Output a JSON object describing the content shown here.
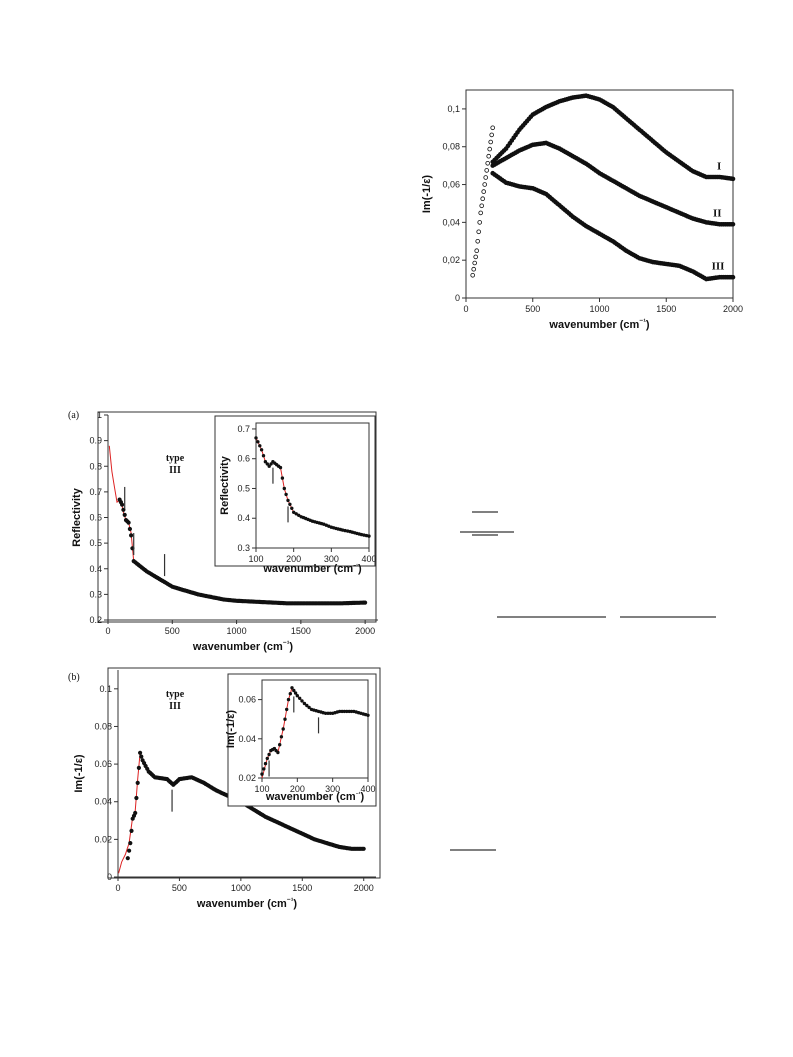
{
  "chart_data": [
    {
      "id": "top",
      "type": "scatter",
      "xlabel": "wavenumber (cm⁻¹)",
      "ylabel": "Im(-1/ε)",
      "xlim": [
        0,
        2000
      ],
      "ylim": [
        0,
        0.11
      ],
      "xticks": [
        0,
        500,
        1000,
        1500,
        2000
      ],
      "xtick_labels": [
        "0",
        "500",
        "1000",
        "1500",
        "2000"
      ],
      "yticks": [
        0,
        0.02,
        0.04,
        0.06,
        0.08,
        0.1
      ],
      "ytick_labels": [
        "0",
        "0,02",
        "0,04",
        "0,06",
        "0,08",
        "0,1"
      ],
      "grid": false,
      "series": [
        {
          "name": "I",
          "label_at": [
            1880,
            0.068
          ],
          "points": [
            [
              200,
              0.072
            ],
            [
              300,
              0.079
            ],
            [
              400,
              0.089
            ],
            [
              500,
              0.097
            ],
            [
              600,
              0.101
            ],
            [
              700,
              0.104
            ],
            [
              800,
              0.106
            ],
            [
              900,
              0.107
            ],
            [
              1000,
              0.105
            ],
            [
              1100,
              0.101
            ],
            [
              1200,
              0.095
            ],
            [
              1300,
              0.089
            ],
            [
              1400,
              0.083
            ],
            [
              1500,
              0.077
            ],
            [
              1600,
              0.072
            ],
            [
              1700,
              0.067
            ],
            [
              1800,
              0.064
            ],
            [
              1900,
              0.064
            ],
            [
              2000,
              0.063
            ]
          ]
        },
        {
          "name": "II",
          "label_at": [
            1850,
            0.043
          ],
          "points": [
            [
              200,
              0.07
            ],
            [
              300,
              0.074
            ],
            [
              400,
              0.078
            ],
            [
              500,
              0.081
            ],
            [
              600,
              0.082
            ],
            [
              700,
              0.079
            ],
            [
              800,
              0.075
            ],
            [
              900,
              0.071
            ],
            [
              1000,
              0.066
            ],
            [
              1100,
              0.062
            ],
            [
              1200,
              0.058
            ],
            [
              1300,
              0.054
            ],
            [
              1400,
              0.051
            ],
            [
              1500,
              0.048
            ],
            [
              1600,
              0.045
            ],
            [
              1700,
              0.042
            ],
            [
              1800,
              0.04
            ],
            [
              1900,
              0.039
            ],
            [
              2000,
              0.039
            ]
          ]
        },
        {
          "name": "III",
          "label_at": [
            1840,
            0.015
          ],
          "points": [
            [
              200,
              0.066
            ],
            [
              300,
              0.061
            ],
            [
              400,
              0.059
            ],
            [
              500,
              0.058
            ],
            [
              600,
              0.055
            ],
            [
              700,
              0.049
            ],
            [
              800,
              0.043
            ],
            [
              900,
              0.038
            ],
            [
              1000,
              0.034
            ],
            [
              1100,
              0.03
            ],
            [
              1200,
              0.025
            ],
            [
              1300,
              0.021
            ],
            [
              1400,
              0.019
            ],
            [
              1500,
              0.018
            ],
            [
              1600,
              0.017
            ],
            [
              1700,
              0.014
            ],
            [
              1800,
              0.01
            ],
            [
              1900,
              0.011
            ],
            [
              2000,
              0.011
            ]
          ]
        },
        {
          "name": "",
          "points": [
            [
              50,
              0.012
            ],
            [
              80,
              0.025
            ],
            [
              110,
              0.045
            ],
            [
              140,
              0.06
            ],
            [
              170,
              0.075
            ],
            [
              200,
              0.09
            ]
          ]
        }
      ]
    },
    {
      "id": "a",
      "type": "line",
      "panel_label": "(a)",
      "annotation": [
        "type",
        "III"
      ],
      "xlabel": "wavenumber (cm⁻¹)",
      "ylabel": "Reflectivity",
      "xlim": [
        0,
        2100
      ],
      "ylim": [
        0.2,
        1.0
      ],
      "xticks": [
        0,
        500,
        1000,
        1500,
        2000
      ],
      "xtick_labels": [
        "0",
        "500",
        "1000",
        "1500",
        "2000"
      ],
      "yticks": [
        0.2,
        0.3,
        0.4,
        0.5,
        0.6,
        0.7,
        0.8,
        0.9,
        1.0
      ],
      "ytick_labels": [
        "0.2",
        "0.3",
        "0.4",
        "0.5",
        "0.6",
        "0.7",
        "0.8",
        "0.9",
        "1"
      ],
      "grid": false,
      "fit": {
        "name": "",
        "points": [
          [
            10,
            0.88
          ],
          [
            30,
            0.78
          ],
          [
            50,
            0.72
          ],
          [
            70,
            0.66
          ],
          [
            100,
            0.67
          ],
          [
            120,
            0.62
          ],
          [
            140,
            0.59
          ],
          [
            160,
            0.58
          ],
          [
            180,
            0.54
          ],
          [
            200,
            0.43
          ],
          [
            250,
            0.41
          ],
          [
            300,
            0.39
          ],
          [
            400,
            0.36
          ],
          [
            500,
            0.33
          ],
          [
            700,
            0.3
          ],
          [
            1000,
            0.275
          ],
          [
            1500,
            0.265
          ],
          [
            2000,
            0.268
          ]
        ]
      },
      "data": {
        "name": "",
        "points": [
          [
            90,
            0.67
          ],
          [
            110,
            0.65
          ],
          [
            140,
            0.59
          ],
          [
            160,
            0.58
          ],
          [
            180,
            0.53
          ],
          [
            200,
            0.43
          ],
          [
            250,
            0.41
          ],
          [
            300,
            0.39
          ],
          [
            400,
            0.36
          ],
          [
            500,
            0.33
          ],
          [
            600,
            0.315
          ],
          [
            700,
            0.3
          ],
          [
            800,
            0.29
          ],
          [
            900,
            0.28
          ],
          [
            1000,
            0.275
          ],
          [
            1200,
            0.27
          ],
          [
            1400,
            0.265
          ],
          [
            1600,
            0.265
          ],
          [
            1800,
            0.265
          ],
          [
            2000,
            0.268
          ]
        ]
      },
      "markers_x": [
        130,
        200,
        440
      ],
      "inset": {
        "xlabel": "wavenumber (cm⁻¹)",
        "ylabel": "Reflectivity",
        "xlim": [
          100,
          400
        ],
        "ylim": [
          0.3,
          0.72
        ],
        "xticks": [
          100,
          200,
          300,
          400
        ],
        "xtick_labels": [
          "100",
          "200",
          "300",
          "400"
        ],
        "yticks": [
          0.3,
          0.4,
          0.5,
          0.6,
          0.7
        ],
        "ytick_labels": [
          "0.3",
          "0.4",
          "0.5",
          "0.6",
          "0.7"
        ],
        "fit": {
          "points": [
            [
              100,
              0.67
            ],
            [
              115,
              0.63
            ],
            [
              125,
              0.59
            ],
            [
              135,
              0.575
            ],
            [
              145,
              0.59
            ],
            [
              155,
              0.58
            ],
            [
              165,
              0.57
            ],
            [
              175,
              0.5
            ],
            [
              185,
              0.46
            ],
            [
              200,
              0.42
            ],
            [
              250,
              0.39
            ],
            [
              300,
              0.37
            ],
            [
              350,
              0.355
            ],
            [
              400,
              0.34
            ]
          ]
        },
        "data": {
          "points": [
            [
              100,
              0.67
            ],
            [
              115,
              0.63
            ],
            [
              125,
              0.59
            ],
            [
              135,
              0.575
            ],
            [
              145,
              0.59
            ],
            [
              155,
              0.58
            ],
            [
              165,
              0.57
            ],
            [
              175,
              0.5
            ],
            [
              185,
              0.46
            ],
            [
              200,
              0.42
            ],
            [
              220,
              0.405
            ],
            [
              250,
              0.39
            ],
            [
              280,
              0.38
            ],
            [
              300,
              0.37
            ],
            [
              330,
              0.36
            ],
            [
              350,
              0.355
            ],
            [
              380,
              0.345
            ],
            [
              400,
              0.34
            ]
          ]
        },
        "markers_x": [
          145,
          185
        ]
      }
    },
    {
      "id": "b",
      "type": "line",
      "panel_label": "(b)",
      "annotation": [
        "type",
        "III"
      ],
      "xlabel": "wavenumber (cm⁻¹)",
      "ylabel": "Im(-1/ε)",
      "xlim": [
        0,
        2100
      ],
      "ylim": [
        0,
        0.11
      ],
      "xticks": [
        0,
        500,
        1000,
        1500,
        2000
      ],
      "xtick_labels": [
        "0",
        "500",
        "1000",
        "1500",
        "2000"
      ],
      "yticks": [
        0,
        0.02,
        0.04,
        0.06,
        0.08,
        0.1
      ],
      "ytick_labels": [
        "0",
        "0.02",
        "0.04",
        "0.06",
        "0.08",
        "0.1"
      ],
      "grid": false,
      "fit": {
        "points": [
          [
            5,
            0.002
          ],
          [
            30,
            0.008
          ],
          [
            60,
            0.012
          ],
          [
            90,
            0.018
          ],
          [
            120,
            0.032
          ],
          [
            140,
            0.035
          ],
          [
            160,
            0.052
          ],
          [
            180,
            0.066
          ],
          [
            200,
            0.062
          ],
          [
            250,
            0.056
          ],
          [
            300,
            0.053
          ],
          [
            400,
            0.052
          ],
          [
            450,
            0.049
          ],
          [
            500,
            0.052
          ],
          [
            600,
            0.053
          ],
          [
            700,
            0.05
          ],
          [
            800,
            0.046
          ],
          [
            1000,
            0.04
          ],
          [
            1200,
            0.032
          ],
          [
            1400,
            0.026
          ],
          [
            1600,
            0.02
          ],
          [
            1800,
            0.016
          ],
          [
            2000,
            0.015
          ]
        ]
      },
      "data": {
        "points": [
          [
            80,
            0.01
          ],
          [
            100,
            0.018
          ],
          [
            120,
            0.031
          ],
          [
            140,
            0.034
          ],
          [
            160,
            0.05
          ],
          [
            180,
            0.066
          ],
          [
            200,
            0.062
          ],
          [
            250,
            0.056
          ],
          [
            300,
            0.053
          ],
          [
            400,
            0.052
          ],
          [
            450,
            0.049
          ],
          [
            500,
            0.052
          ],
          [
            600,
            0.053
          ],
          [
            700,
            0.05
          ],
          [
            800,
            0.046
          ],
          [
            900,
            0.043
          ],
          [
            1000,
            0.04
          ],
          [
            1100,
            0.036
          ],
          [
            1200,
            0.032
          ],
          [
            1300,
            0.029
          ],
          [
            1400,
            0.026
          ],
          [
            1500,
            0.023
          ],
          [
            1600,
            0.02
          ],
          [
            1700,
            0.018
          ],
          [
            1800,
            0.016
          ],
          [
            1900,
            0.015
          ],
          [
            2000,
            0.015
          ]
        ]
      },
      "markers_x": [
        440
      ],
      "inset": {
        "xlabel": "wavenumber (cm⁻¹)",
        "ylabel": "Im(-1/ε)",
        "xlim": [
          100,
          400
        ],
        "ylim": [
          0.02,
          0.07
        ],
        "xticks": [
          100,
          200,
          300,
          400
        ],
        "xtick_labels": [
          "100",
          "200",
          "300",
          "400"
        ],
        "yticks": [
          0.02,
          0.04,
          0.06
        ],
        "ytick_labels": [
          "0.02",
          "0.04",
          "0.06"
        ],
        "fit": {
          "points": [
            [
              100,
              0.02
            ],
            [
              115,
              0.03
            ],
            [
              125,
              0.034
            ],
            [
              135,
              0.035
            ],
            [
              145,
              0.033
            ],
            [
              160,
              0.045
            ],
            [
              175,
              0.06
            ],
            [
              185,
              0.066
            ],
            [
              200,
              0.062
            ],
            [
              220,
              0.058
            ],
            [
              240,
              0.055
            ],
            [
              260,
              0.054
            ],
            [
              280,
              0.053
            ],
            [
              300,
              0.053
            ],
            [
              320,
              0.054
            ],
            [
              340,
              0.054
            ],
            [
              360,
              0.054
            ],
            [
              380,
              0.053
            ],
            [
              400,
              0.052
            ]
          ]
        },
        "data": {
          "points": [
            [
              100,
              0.022
            ],
            [
              115,
              0.03
            ],
            [
              125,
              0.034
            ],
            [
              135,
              0.035
            ],
            [
              145,
              0.033
            ],
            [
              160,
              0.045
            ],
            [
              175,
              0.06
            ],
            [
              185,
              0.066
            ],
            [
              200,
              0.062
            ],
            [
              220,
              0.058
            ],
            [
              240,
              0.055
            ],
            [
              260,
              0.054
            ],
            [
              280,
              0.053
            ],
            [
              300,
              0.053
            ],
            [
              320,
              0.054
            ],
            [
              340,
              0.054
            ],
            [
              360,
              0.054
            ],
            [
              380,
              0.053
            ],
            [
              400,
              0.052
            ]
          ]
        },
        "markers_x": [
          120,
          190,
          260
        ]
      }
    }
  ]
}
